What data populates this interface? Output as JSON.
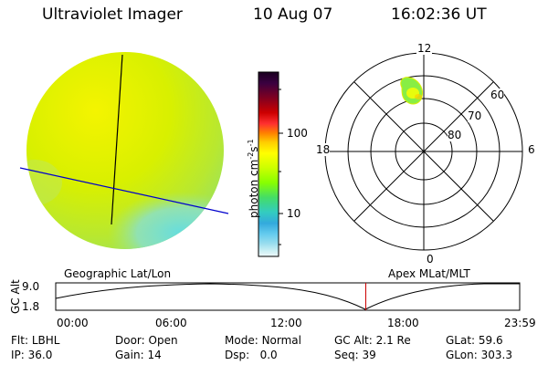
{
  "header": {
    "title": "Ultraviolet Imager",
    "date": "10 Aug 07",
    "time": "16:02:36 UT"
  },
  "colorbar": {
    "label": "photon cm⁻²s⁻¹",
    "label_main": "photon cm",
    "label_exp1": "-2",
    "label_mid": "s",
    "label_exp2": "-1",
    "ticks": [
      "100",
      "10"
    ],
    "colors": [
      "#1a0020",
      "#3a0040",
      "#800020",
      "#cc0000",
      "#ff3030",
      "#ff8000",
      "#ffcc00",
      "#ffff00",
      "#ccff00",
      "#88ff00",
      "#44dd66",
      "#33ccc0",
      "#33aadd",
      "#66ccee",
      "#99ddee",
      "#ccf0f4",
      "#eef8fa"
    ]
  },
  "polar_plot": {
    "mlt_labels": [
      "12",
      "18",
      "6",
      "0"
    ],
    "lat_labels": [
      "60",
      "70",
      "80"
    ]
  },
  "panels": {
    "left_caption": "Geographic Lat/Lon",
    "right_caption": "Apex MLat/MLT"
  },
  "altitude_plot": {
    "ylabel": "GC Alt",
    "ytick_top": "9.0",
    "ytick_bottom": "1.8",
    "xticks": [
      "00:00",
      "06:00",
      "12:00",
      "18:00",
      "23:59"
    ],
    "current_time_hours": 16.04,
    "colors": {
      "marker": "#cc0000"
    }
  },
  "status": {
    "row1": [
      {
        "label": "Flt:",
        "value": "LBHL"
      },
      {
        "label": "Door:",
        "value": "Open"
      },
      {
        "label": "Mode:",
        "value": "Normal"
      },
      {
        "label": "GC Alt:",
        "value": "2.1 Re"
      },
      {
        "label": "GLat:",
        "value": "59.6"
      }
    ],
    "row2": [
      {
        "label": "IP:",
        "value": "36.0"
      },
      {
        "label": "Gain:",
        "value": "14"
      },
      {
        "label": "Dsp:",
        "value": "0.0"
      },
      {
        "label": "Seq:",
        "value": "39"
      },
      {
        "label": "GLon:",
        "value": "303.3"
      }
    ]
  }
}
